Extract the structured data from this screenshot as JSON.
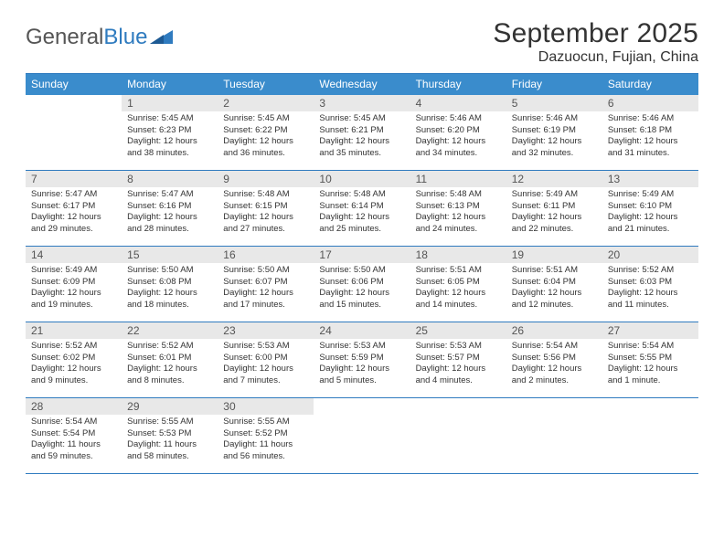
{
  "logo": {
    "part1": "General",
    "part2": "Blue"
  },
  "title": "September 2025",
  "location": "Dazuocun, Fujian, China",
  "header_bg": "#3a8ccc",
  "border_color": "#2f7bbf",
  "daynum_bg": "#e8e8e8",
  "dow": [
    "Sunday",
    "Monday",
    "Tuesday",
    "Wednesday",
    "Thursday",
    "Friday",
    "Saturday"
  ],
  "weeks": [
    [
      null,
      {
        "n": "1",
        "sr": "5:45 AM",
        "ss": "6:23 PM",
        "dl": "12 hours and 38 minutes."
      },
      {
        "n": "2",
        "sr": "5:45 AM",
        "ss": "6:22 PM",
        "dl": "12 hours and 36 minutes."
      },
      {
        "n": "3",
        "sr": "5:45 AM",
        "ss": "6:21 PM",
        "dl": "12 hours and 35 minutes."
      },
      {
        "n": "4",
        "sr": "5:46 AM",
        "ss": "6:20 PM",
        "dl": "12 hours and 34 minutes."
      },
      {
        "n": "5",
        "sr": "5:46 AM",
        "ss": "6:19 PM",
        "dl": "12 hours and 32 minutes."
      },
      {
        "n": "6",
        "sr": "5:46 AM",
        "ss": "6:18 PM",
        "dl": "12 hours and 31 minutes."
      }
    ],
    [
      {
        "n": "7",
        "sr": "5:47 AM",
        "ss": "6:17 PM",
        "dl": "12 hours and 29 minutes."
      },
      {
        "n": "8",
        "sr": "5:47 AM",
        "ss": "6:16 PM",
        "dl": "12 hours and 28 minutes."
      },
      {
        "n": "9",
        "sr": "5:48 AM",
        "ss": "6:15 PM",
        "dl": "12 hours and 27 minutes."
      },
      {
        "n": "10",
        "sr": "5:48 AM",
        "ss": "6:14 PM",
        "dl": "12 hours and 25 minutes."
      },
      {
        "n": "11",
        "sr": "5:48 AM",
        "ss": "6:13 PM",
        "dl": "12 hours and 24 minutes."
      },
      {
        "n": "12",
        "sr": "5:49 AM",
        "ss": "6:11 PM",
        "dl": "12 hours and 22 minutes."
      },
      {
        "n": "13",
        "sr": "5:49 AM",
        "ss": "6:10 PM",
        "dl": "12 hours and 21 minutes."
      }
    ],
    [
      {
        "n": "14",
        "sr": "5:49 AM",
        "ss": "6:09 PM",
        "dl": "12 hours and 19 minutes."
      },
      {
        "n": "15",
        "sr": "5:50 AM",
        "ss": "6:08 PM",
        "dl": "12 hours and 18 minutes."
      },
      {
        "n": "16",
        "sr": "5:50 AM",
        "ss": "6:07 PM",
        "dl": "12 hours and 17 minutes."
      },
      {
        "n": "17",
        "sr": "5:50 AM",
        "ss": "6:06 PM",
        "dl": "12 hours and 15 minutes."
      },
      {
        "n": "18",
        "sr": "5:51 AM",
        "ss": "6:05 PM",
        "dl": "12 hours and 14 minutes."
      },
      {
        "n": "19",
        "sr": "5:51 AM",
        "ss": "6:04 PM",
        "dl": "12 hours and 12 minutes."
      },
      {
        "n": "20",
        "sr": "5:52 AM",
        "ss": "6:03 PM",
        "dl": "12 hours and 11 minutes."
      }
    ],
    [
      {
        "n": "21",
        "sr": "5:52 AM",
        "ss": "6:02 PM",
        "dl": "12 hours and 9 minutes."
      },
      {
        "n": "22",
        "sr": "5:52 AM",
        "ss": "6:01 PM",
        "dl": "12 hours and 8 minutes."
      },
      {
        "n": "23",
        "sr": "5:53 AM",
        "ss": "6:00 PM",
        "dl": "12 hours and 7 minutes."
      },
      {
        "n": "24",
        "sr": "5:53 AM",
        "ss": "5:59 PM",
        "dl": "12 hours and 5 minutes."
      },
      {
        "n": "25",
        "sr": "5:53 AM",
        "ss": "5:57 PM",
        "dl": "12 hours and 4 minutes."
      },
      {
        "n": "26",
        "sr": "5:54 AM",
        "ss": "5:56 PM",
        "dl": "12 hours and 2 minutes."
      },
      {
        "n": "27",
        "sr": "5:54 AM",
        "ss": "5:55 PM",
        "dl": "12 hours and 1 minute."
      }
    ],
    [
      {
        "n": "28",
        "sr": "5:54 AM",
        "ss": "5:54 PM",
        "dl": "11 hours and 59 minutes."
      },
      {
        "n": "29",
        "sr": "5:55 AM",
        "ss": "5:53 PM",
        "dl": "11 hours and 58 minutes."
      },
      {
        "n": "30",
        "sr": "5:55 AM",
        "ss": "5:52 PM",
        "dl": "11 hours and 56 minutes."
      },
      null,
      null,
      null,
      null
    ]
  ],
  "labels": {
    "sunrise": "Sunrise: ",
    "sunset": "Sunset: ",
    "daylight": "Daylight: "
  }
}
